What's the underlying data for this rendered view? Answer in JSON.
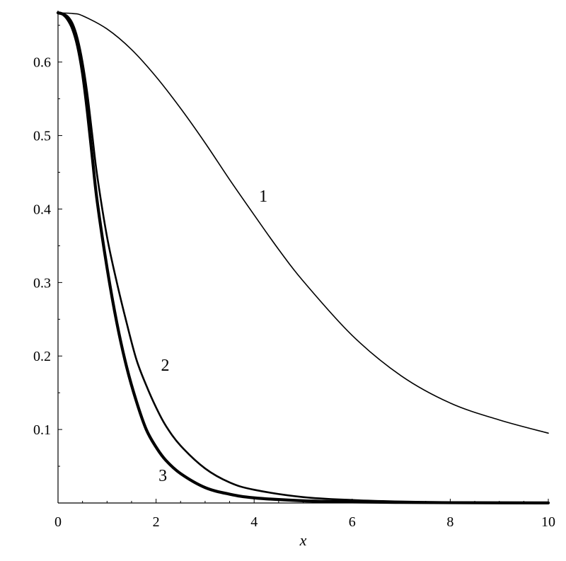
{
  "chart_data": {
    "type": "line",
    "title": "",
    "xlabel": "x",
    "ylabel": "",
    "xlim": [
      0,
      10
    ],
    "ylim": [
      0,
      0.67
    ],
    "xticks": [
      0,
      2,
      4,
      6,
      8,
      10
    ],
    "xtick_labels": [
      "0",
      "2",
      "4",
      "6",
      "8",
      "10"
    ],
    "yticks": [
      0.1,
      0.2,
      0.3,
      0.4,
      0.5,
      0.6
    ],
    "ytick_labels": [
      "0.1",
      "0.2",
      "0.3",
      "0.4",
      "0.5",
      "0.6"
    ],
    "grid": false,
    "legend": "none",
    "series": [
      {
        "label": "1",
        "label_at": [
          4.1,
          0.41
        ],
        "stroke": "#000000",
        "weight": "thin",
        "x": [
          0,
          0.3,
          0.5,
          1,
          1.5,
          2,
          2.5,
          3,
          3.5,
          4,
          4.5,
          5,
          6,
          7,
          8,
          9,
          10
        ],
        "y": [
          0.667,
          0.666,
          0.663,
          0.645,
          0.617,
          0.58,
          0.537,
          0.49,
          0.44,
          0.392,
          0.345,
          0.302,
          0.228,
          0.173,
          0.136,
          0.113,
          0.095
        ]
      },
      {
        "label": "2",
        "label_at": [
          2.1,
          0.18
        ],
        "stroke": "#000000",
        "weight": "medium",
        "x": [
          0,
          0.1,
          0.2,
          0.3,
          0.4,
          0.5,
          0.6,
          0.7,
          0.8,
          1,
          1.2,
          1.4,
          1.6,
          1.8,
          2,
          2.2,
          2.5,
          3,
          3.5,
          4,
          5,
          6,
          7,
          8,
          10
        ],
        "y": [
          0.667,
          0.666,
          0.662,
          0.652,
          0.632,
          0.6,
          0.556,
          0.5,
          0.445,
          0.362,
          0.3,
          0.245,
          0.195,
          0.16,
          0.13,
          0.105,
          0.078,
          0.047,
          0.028,
          0.018,
          0.008,
          0.004,
          0.002,
          0.001,
          0.0005
        ]
      },
      {
        "label": "3",
        "label_at": [
          2.05,
          0.03
        ],
        "stroke": "#000000",
        "weight": "thick",
        "x": [
          0,
          0.1,
          0.2,
          0.3,
          0.4,
          0.5,
          0.6,
          0.7,
          0.8,
          1,
          1.2,
          1.4,
          1.6,
          1.8,
          2,
          2.2,
          2.5,
          3,
          3.5,
          4,
          5,
          6,
          7,
          8,
          10
        ],
        "y": [
          0.667,
          0.665,
          0.658,
          0.645,
          0.622,
          0.585,
          0.532,
          0.47,
          0.41,
          0.32,
          0.245,
          0.185,
          0.138,
          0.1,
          0.076,
          0.058,
          0.04,
          0.021,
          0.012,
          0.007,
          0.003,
          0.0015,
          0.0008,
          0.0004,
          0.0001
        ]
      }
    ]
  }
}
